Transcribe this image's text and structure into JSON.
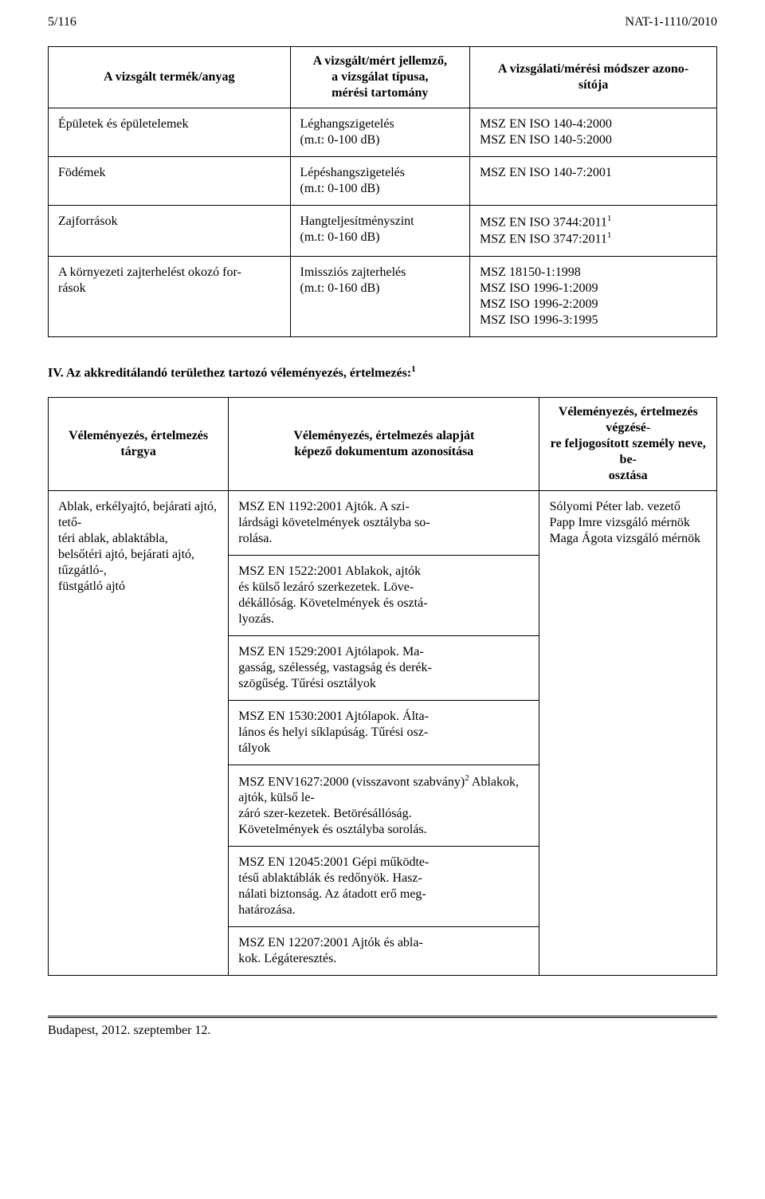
{
  "header": {
    "left": "5/116",
    "right": "NAT-1-1110/2010"
  },
  "table1": {
    "columns": [
      "A vizsgált termék/anyag",
      "A vizsgált/mért jellemző,\na vizsgálat típusa,\nmérési tartomány",
      "A vizsgálati/mérési módszer azono-\nsítója"
    ],
    "rows": [
      {
        "c0": "Épületek és épületelemek",
        "c1": "Léghangszigetelés\n(m.t: 0-100 dB)",
        "c2": "MSZ EN ISO 140-4:2000\nMSZ EN ISO 140-5:2000"
      },
      {
        "c0": "Födémek",
        "c1": "Lépéshangszigetelés\n(m.t: 0-100 dB)",
        "c2": "MSZ EN ISO 140-7:2001"
      },
      {
        "c0": "Zajforrások",
        "c1": "Hangteljesítményszint\n(m.t: 0-160 dB)",
        "c2_html": "MSZ EN ISO 3744:2011<span class=\"sup\">1</span><br>MSZ EN ISO 3747:2011<span class=\"sup\">1</span>"
      },
      {
        "c0": "A környezeti zajterhelést okozó for-\nrások",
        "c1": "Imissziós zajterhelés\n(m.t: 0-160 dB)",
        "c2": "MSZ 18150-1:1998\nMSZ ISO 1996-1:2009\nMSZ ISO 1996-2:2009\nMSZ ISO 1996-3:1995"
      }
    ]
  },
  "section4_title_html": "IV. Az akkreditálandó területhez tartozó véleményezés, értelmezés:<span class=\"sup\">1</span>",
  "table2": {
    "columns": [
      "Véleményezés, értelmezés tárgya",
      "Véleményezés, értelmezés alapját\nképező dokumentum azonosítása",
      "Véleményezés, értelmezés végzésé-\nre feljogosított személy neve, be-\nosztása"
    ],
    "c0": "Ablak, erkélyajtó, bejárati ajtó, tető-\ntéri ablak, ablaktábla,\nbelsőtéri ajtó, bejárati ajtó, tűzgátló-,\nfüstgátló ajtó",
    "c2": "Sólyomi Péter lab. vezető\nPapp Imre vizsgáló mérnök\nMaga Ágota vizsgáló mérnök",
    "c1_rows": [
      "MSZ EN 1192:2001 Ajtók. A szi-\nlárdsági követelmények osztályba so-\nrolása.",
      "MSZ EN 1522:2001 Ablakok, ajtók\nés külső lezáró szerkezetek. Löve-\ndékállóság. Követelmények és osztá-\nlyozás.",
      "MSZ EN 1529:2001 Ajtólapok. Ma-\ngasság, szélesség, vastagság és derék-\nszögűség. Tűrési osztályok",
      "MSZ EN 1530:2001 Ajtólapok. Álta-\nlános és helyi síklapúság. Tűrési osz-\ntályok",
      {
        "html": "MSZ ENV1627:2000 (visszavont szabvány)<span class=\"sup\">2</span> Ablakok, ajtók, külső le-<br>záró szer-kezetek. Betörésállóság.<br>Követelmények és osztályba sorolás."
      },
      "MSZ EN 12045:2001 Gépi működte-\ntésű ablaktáblák és redőnyök. Hasz-\nnálati biztonság. Az átadott erő meg-\nhatározása.",
      "MSZ EN 12207:2001 Ajtók és abla-\nkok. Légáteresztés."
    ]
  },
  "footer": "Budapest, 2012. szeptember 12."
}
